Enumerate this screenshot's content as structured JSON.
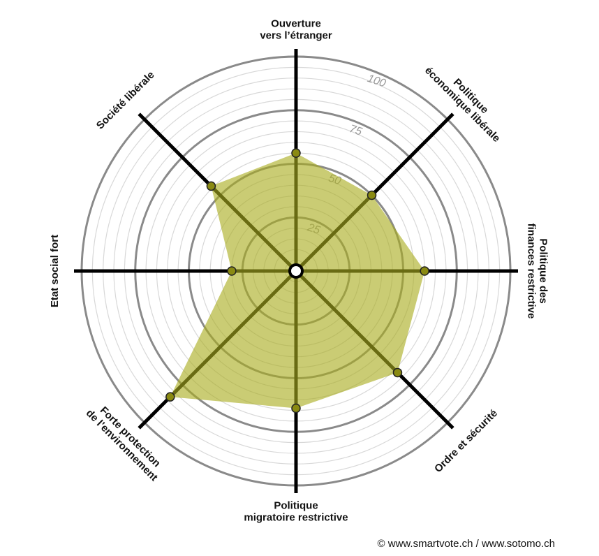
{
  "chart_data": {
    "type": "radar",
    "categories": [
      [
        "Ouverture",
        "vers l’étranger"
      ],
      [
        "Politique",
        "économique libérale"
      ],
      [
        "Politique des",
        "finances restrictive"
      ],
      [
        "Ordre et sécurité"
      ],
      [
        "Politique",
        "migratoire restrictive"
      ],
      [
        "Forte protection",
        "de l’environnement"
      ],
      [
        "Etat social fort"
      ],
      [
        "Société libérale"
      ]
    ],
    "values": [
      55,
      50,
      60,
      67,
      64,
      83,
      30,
      56
    ],
    "rlim": [
      0,
      100
    ],
    "rticks": [
      25,
      50,
      75,
      100
    ],
    "color": "#a9ac1e",
    "point_color": "#8a8a12",
    "grid": true,
    "footer": "© www.smartvote.ch / www.sotomo.ch"
  }
}
